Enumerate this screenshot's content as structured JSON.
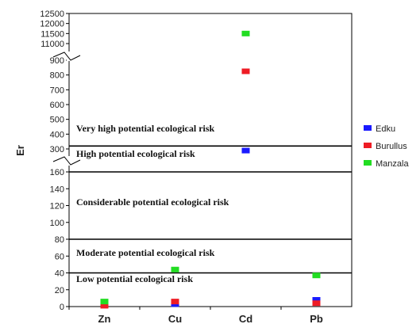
{
  "chart_data": {
    "type": "scatter",
    "title": "",
    "ylabel": "Er",
    "xlabel": "",
    "categories": [
      "Zn",
      "Cu",
      "Cd",
      "Pb"
    ],
    "y_break": "between 160 and 300, and between 900 and 11000",
    "y_ticks_lower": [
      "0",
      "20",
      "40",
      "60",
      "80",
      "100",
      "120",
      "140",
      "160"
    ],
    "y_ticks_middle": [
      "300",
      "400",
      "500",
      "600",
      "700",
      "800",
      "900"
    ],
    "y_ticks_upper": [
      "11000",
      "11500",
      "12000",
      "12500"
    ],
    "zones": [
      {
        "label": "Low potential ecological risk",
        "range": [
          0,
          40
        ]
      },
      {
        "label": "Moderate potential ecological risk",
        "range": [
          40,
          80
        ]
      },
      {
        "label": "Considerable potential ecological risk",
        "range": [
          80,
          160
        ]
      },
      {
        "label": "High potential ecological risk",
        "range": [
          160,
          320
        ]
      },
      {
        "label": "Very high potential ecological risk",
        "range": [
          320,
          12500
        ]
      }
    ],
    "thresholds": [
      40,
      80,
      160,
      320
    ],
    "series": [
      {
        "name": "Edku",
        "color": "#1a1aff",
        "values": [
          2,
          3,
          290,
          8
        ]
      },
      {
        "name": "Burullus",
        "color": "#ee1c25",
        "values": [
          1,
          6,
          825,
          4
        ]
      },
      {
        "name": "Manzala",
        "color": "#22dd22",
        "values": [
          6,
          44,
          11500,
          37
        ]
      }
    ],
    "legend_position": "right"
  }
}
